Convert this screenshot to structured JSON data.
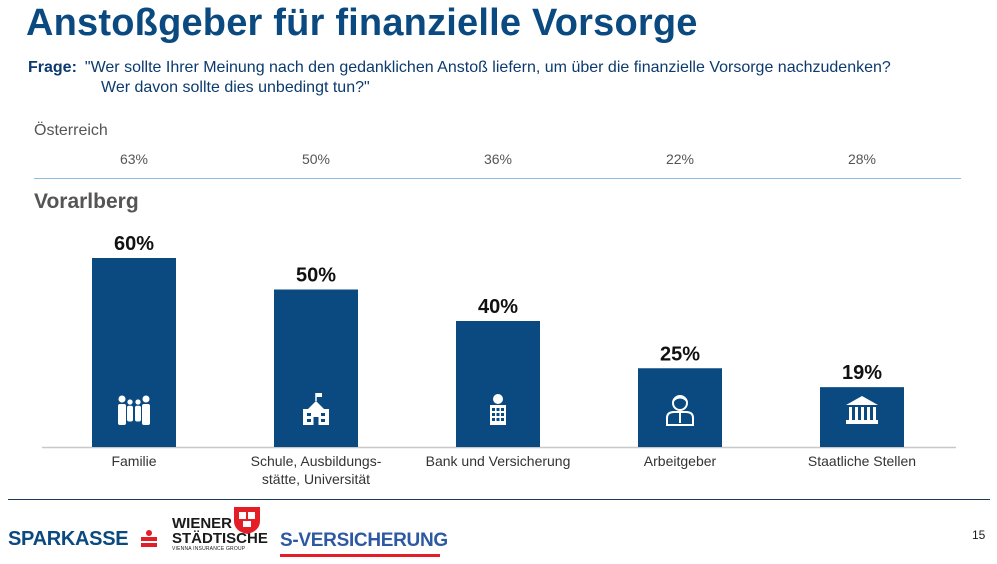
{
  "header": {
    "title": "Anstoßgeber für finanzielle Vorsorge",
    "question_label": "Frage:",
    "question_line1": "\"Wer sollte Ihrer Meinung nach den gedanklichen Anstoß liefern, um über die finanzielle Vorsorge nachzudenken?",
    "question_line2": "Wer davon sollte dies unbedingt tun?\""
  },
  "austria": {
    "label": "Österreich",
    "values": [
      "63%",
      "50%",
      "36%",
      "22%",
      "28%"
    ]
  },
  "chart_data": {
    "type": "bar",
    "title": "Vorarlberg",
    "categories": [
      "Familie",
      "Schule, Ausbildungs-\nstätte, Universität",
      "Bank und Versicherung",
      "Arbeitgeber",
      "Staatliche Stellen"
    ],
    "values": [
      60,
      50,
      40,
      25,
      19
    ],
    "value_labels": [
      "60%",
      "50%",
      "40%",
      "25%",
      "19%"
    ],
    "icons": [
      "family-icon",
      "school-icon",
      "bank-building-icon",
      "employee-icon",
      "government-building-icon"
    ],
    "ylim": [
      0,
      60
    ],
    "bar_color": "#0b4a80",
    "grid": false,
    "legend": "none"
  },
  "footer": {
    "logo_sparkasse": "SPARKASSE",
    "logo_ws_line1": "WIENER",
    "logo_ws_line2": "STÄDTISCHE",
    "logo_ws_sub": "VIENNA INSURANCE GROUP",
    "logo_sv": "S-VERSICHERUNG",
    "page_number": "15"
  },
  "colors": {
    "brand_blue": "#0b4a80",
    "accent_red": "#e41e26"
  }
}
